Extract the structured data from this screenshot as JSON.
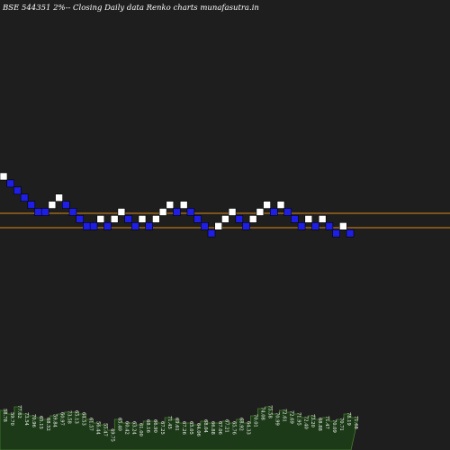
{
  "title": "BSE 544351 2%-- Closing Daily data Renko charts munafasutra.in",
  "colors": {
    "background": "#1e1e1e",
    "up_brick": "#ffffff",
    "down_brick": "#1e1ee6",
    "brick_border": "#000000",
    "level_line": "#d98b1a",
    "volume_fill": "#1c3a18",
    "volume_stroke": "#4a7a30"
  },
  "chart_data": {
    "type": "renko",
    "box_size_percent": 2,
    "bricks": [
      {
        "direction": "up",
        "level": 0
      },
      {
        "direction": "down",
        "level": 1
      },
      {
        "direction": "down",
        "level": 2
      },
      {
        "direction": "down",
        "level": 3
      },
      {
        "direction": "down",
        "level": 4
      },
      {
        "direction": "down",
        "level": 5
      },
      {
        "direction": "down",
        "level": 5
      },
      {
        "direction": "up",
        "level": 4
      },
      {
        "direction": "up",
        "level": 3
      },
      {
        "direction": "down",
        "level": 4
      },
      {
        "direction": "down",
        "level": 5
      },
      {
        "direction": "down",
        "level": 6
      },
      {
        "direction": "down",
        "level": 7
      },
      {
        "direction": "down",
        "level": 7
      },
      {
        "direction": "up",
        "level": 6
      },
      {
        "direction": "down",
        "level": 7
      },
      {
        "direction": "up",
        "level": 6
      },
      {
        "direction": "up",
        "level": 5
      },
      {
        "direction": "down",
        "level": 6
      },
      {
        "direction": "down",
        "level": 7
      },
      {
        "direction": "up",
        "level": 6
      },
      {
        "direction": "down",
        "level": 7
      },
      {
        "direction": "up",
        "level": 6
      },
      {
        "direction": "up",
        "level": 5
      },
      {
        "direction": "up",
        "level": 4
      },
      {
        "direction": "down",
        "level": 5
      },
      {
        "direction": "up",
        "level": 4
      },
      {
        "direction": "down",
        "level": 5
      },
      {
        "direction": "down",
        "level": 6
      },
      {
        "direction": "down",
        "level": 7
      },
      {
        "direction": "down",
        "level": 8
      },
      {
        "direction": "up",
        "level": 7
      },
      {
        "direction": "up",
        "level": 6
      },
      {
        "direction": "up",
        "level": 5
      },
      {
        "direction": "down",
        "level": 6
      },
      {
        "direction": "down",
        "level": 7
      },
      {
        "direction": "up",
        "level": 6
      },
      {
        "direction": "up",
        "level": 5
      },
      {
        "direction": "up",
        "level": 4
      },
      {
        "direction": "down",
        "level": 5
      },
      {
        "direction": "up",
        "level": 4
      },
      {
        "direction": "down",
        "level": 5
      },
      {
        "direction": "down",
        "level": 6
      },
      {
        "direction": "down",
        "level": 7
      },
      {
        "direction": "up",
        "level": 6
      },
      {
        "direction": "down",
        "level": 7
      },
      {
        "direction": "up",
        "level": 6
      },
      {
        "direction": "down",
        "level": 7
      },
      {
        "direction": "down",
        "level": 8
      },
      {
        "direction": "up",
        "level": 7
      },
      {
        "direction": "down",
        "level": 8
      }
    ],
    "level_lines": [
      "upper",
      "lower"
    ],
    "price_labels": [
      "58.78",
      "59.70",
      "77.62",
      "73.54",
      "70.96",
      "65.15",
      "68.52",
      "59.84",
      "60.97",
      "73.58",
      "65.13",
      "64.53",
      "61.57",
      "56.44",
      "55.47",
      "49.75",
      "65.40",
      "60.42",
      "63.24",
      "61.00",
      "68.16",
      "66.90",
      "67.25",
      "71.45",
      "69.61",
      "67.26",
      "65.05",
      "64.06",
      "68.04",
      "66.88",
      "67.06",
      "67.21",
      "65.76",
      "68.92",
      "64.33",
      "70.01",
      "74.08",
      "75.58",
      "70.99",
      "72.61",
      "72.69",
      "71.95",
      "72.40",
      "73.20",
      "68.88",
      "71.47",
      "70.09",
      "70.71",
      "78.19",
      "71.68"
    ],
    "volume": [
      44,
      40,
      48,
      40,
      38,
      36,
      34,
      38,
      40,
      42,
      42,
      40,
      34,
      30,
      28,
      22,
      34,
      30,
      30,
      28,
      32,
      32,
      30,
      36,
      34,
      30,
      30,
      28,
      32,
      30,
      30,
      32,
      30,
      34,
      30,
      38,
      46,
      48,
      40,
      44,
      42,
      40,
      36,
      38,
      34,
      36,
      32,
      34,
      40,
      36
    ]
  }
}
